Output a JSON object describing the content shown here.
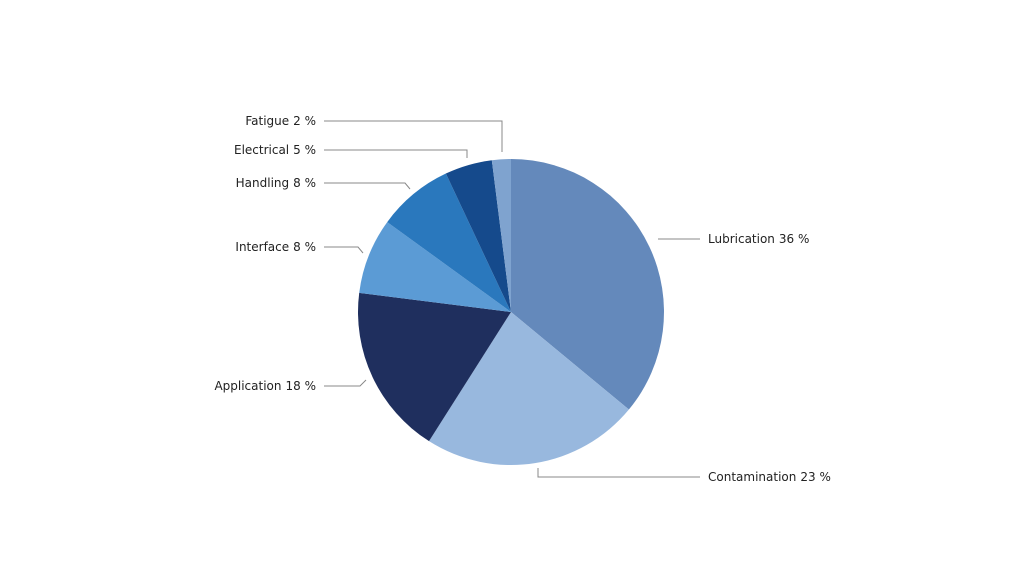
{
  "chart_data": {
    "type": "pie",
    "categories": [
      "Lubrication",
      "Contamination",
      "Application",
      "Interface",
      "Handling",
      "Electrical",
      "Fatigue"
    ],
    "values": [
      36,
      23,
      18,
      8,
      8,
      5,
      2
    ],
    "value_labels": [
      "36 %",
      "23 %",
      "18 %",
      "8 %",
      "8 %",
      "5 %",
      "2 %"
    ],
    "colors": [
      "#6489bb",
      "#98b8de",
      "#1f2f5e",
      "#5b9bd5",
      "#2a78bd",
      "#154a8c",
      "#7fa3cf"
    ]
  }
}
